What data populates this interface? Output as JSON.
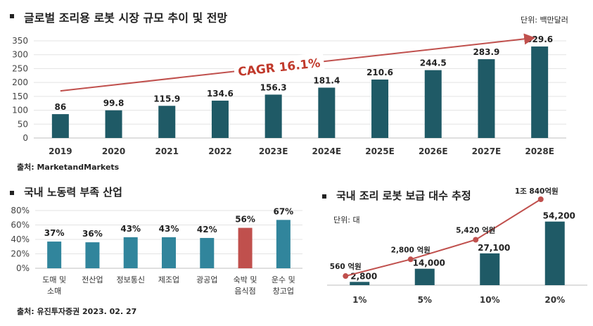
{
  "top": {
    "title": "글로벌 조리용 로봇 시장 규모 추이 및 전망",
    "unit": "단위: 백만달러",
    "source": "출처: MarketandMarkets",
    "cagr_label": "CAGR 16.1%",
    "colors": {
      "bar": "#1f5a66",
      "arrow": "#c0504d",
      "cagr_text": "#c0392b"
    }
  },
  "left": {
    "title": "국내 노동력 부족 산업",
    "source": "출처: 유진투자증권 2023. 02. 27",
    "colors": {
      "bar": "#31859c",
      "highlight": "#c0504d"
    }
  },
  "right": {
    "title": "국내 조리 로봇 보급 대수 추정",
    "unit": "단위: 대",
    "colors": {
      "bar": "#1f5a66",
      "line": "#c0504d"
    }
  },
  "chart_data": [
    {
      "type": "bar",
      "title": "글로벌 조리용 로봇 시장 규모 추이 및 전망",
      "categories": [
        "2019",
        "2020",
        "2021",
        "2022",
        "2023E",
        "2024E",
        "2025E",
        "2026E",
        "2027E",
        "2028E"
      ],
      "values": [
        86,
        99.8,
        115.9,
        134.6,
        156.3,
        181.4,
        210.6,
        244.5,
        283.9,
        329.6
      ],
      "value_labels": [
        "86",
        "99.8",
        "115.9",
        "134.6",
        "156.3",
        "181.4",
        "210.6",
        "244.5",
        "283.9",
        "329.6"
      ],
      "yticks": [
        "0",
        "50",
        "100",
        "150",
        "200",
        "250",
        "300",
        "350"
      ],
      "ylim": [
        0,
        350
      ],
      "grid": true,
      "annotation": "CAGR 16.1%"
    },
    {
      "type": "bar",
      "title": "국내 노동력 부족 산업",
      "categories": [
        [
          "도매 및",
          "소매"
        ],
        [
          "전산업"
        ],
        [
          "정보통신"
        ],
        [
          "제조업"
        ],
        [
          "광공업"
        ],
        [
          "숙박 및",
          "음식점"
        ],
        [
          "운수 및",
          "창고업"
        ]
      ],
      "values": [
        37,
        36,
        43,
        43,
        42,
        56,
        67
      ],
      "value_labels": [
        "37%",
        "36%",
        "43%",
        "43%",
        "42%",
        "56%",
        "67%"
      ],
      "highlight_index": 5,
      "yticks": [
        "0%",
        "20%",
        "40%",
        "60%",
        "80%"
      ],
      "ylim": [
        0,
        80
      ],
      "grid": true
    },
    {
      "type": "bar",
      "title": "국내 조리 로봇 보급 대수 추정",
      "categories": [
        "1%",
        "5%",
        "10%",
        "20%"
      ],
      "values": [
        2800,
        14000,
        27100,
        54200
      ],
      "value_labels": [
        "2,800",
        "14,000",
        "27,100",
        "54,200"
      ],
      "line_values": [
        5600000,
        28000000,
        54200000,
        108400000
      ],
      "line_labels": [
        "560 억원",
        "2,800 억원",
        "5,420 억원",
        "1조 840억원"
      ],
      "ylim": [
        0,
        60000
      ]
    }
  ]
}
